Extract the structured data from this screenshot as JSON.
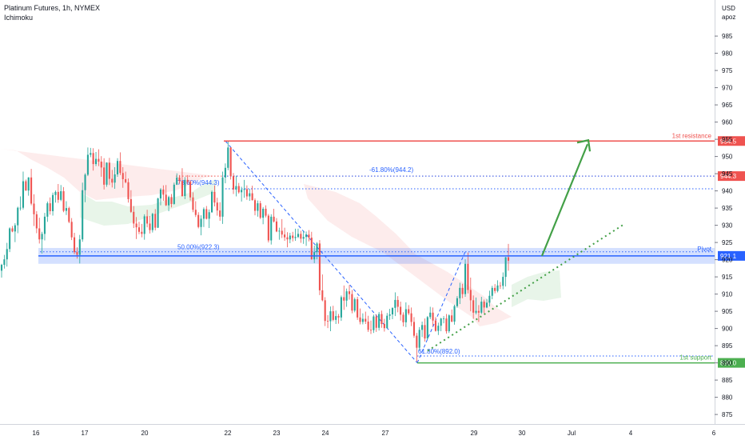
{
  "header": {
    "title": "Platinum Futures, 1h, NYMEX",
    "indicator": "Ichimoku"
  },
  "colors": {
    "up": "#26a69a",
    "down": "#ef5350",
    "resistance": "#ef5350",
    "support": "#4caf50",
    "pivot": "#2962ff",
    "fib": "#2962ff",
    "cloud_bear": "#fce4e4",
    "cloud_bull": "#e6f4ea",
    "arrow": "#43a047"
  },
  "chart_data": {
    "type": "candlestick",
    "y_axis": {
      "unit_top": "USD",
      "unit_sub": "apoz",
      "min": 872,
      "max": 988,
      "ticks": [
        875,
        880,
        885,
        890,
        895,
        900,
        905,
        910,
        915,
        920,
        925,
        930,
        935,
        940,
        945,
        950,
        955,
        960,
        965,
        970,
        975,
        980,
        985
      ]
    },
    "x_ticks": [
      "16",
      "17",
      "20",
      "22",
      "23",
      "24",
      "27",
      "29",
      "30",
      "Jul",
      "4",
      "6"
    ],
    "levels": [
      {
        "name": "1st resistance",
        "value": 954.5,
        "badge": "954.5"
      },
      {
        "name": "Pivot",
        "value": 921.1,
        "badge": "921.1"
      },
      {
        "name": "1st support",
        "value": 890.0,
        "badge": "890.0"
      },
      {
        "name": "",
        "value": 944.3,
        "badge": "944.3"
      }
    ],
    "fib_labels": [
      "78.60%(944.3)",
      "50.00%(922.3)",
      "-61.80%(944.2)",
      "61.80%(892.0)"
    ],
    "candles": [
      [
        916.8,
        918.8,
        914.8,
        918.5
      ],
      [
        918.5,
        921.4,
        917.4,
        920.1
      ],
      [
        920.1,
        924.9,
        918.0,
        923.1
      ],
      [
        923.1,
        929.4,
        922.2,
        929.1
      ],
      [
        929.1,
        929.8,
        928.0,
        928.2
      ],
      [
        928.2,
        930.6,
        925.1,
        930.0
      ],
      [
        930.0,
        935.4,
        927.7,
        935.1
      ],
      [
        935.1,
        938.4,
        934.3,
        935.1
      ],
      [
        935.1,
        945.6,
        934.6,
        942.8
      ],
      [
        942.8,
        943.3,
        940.0,
        940.1
      ],
      [
        940.1,
        944.0,
        938.6,
        943.9
      ],
      [
        943.9,
        946.4,
        935.8,
        936.3
      ],
      [
        936.3,
        939.0,
        929.8,
        933.2
      ],
      [
        933.2,
        934.1,
        927.7,
        929.1
      ],
      [
        929.1,
        932.2,
        924.7,
        925.9
      ],
      [
        925.9,
        928.1,
        921.8,
        927.5
      ],
      [
        927.5,
        933.6,
        925.6,
        932.5
      ],
      [
        932.5,
        936.9,
        931.0,
        936.4
      ],
      [
        936.4,
        938.1,
        933.1,
        934.1
      ],
      [
        934.1,
        939.5,
        932.8,
        938.8
      ],
      [
        938.8,
        940.1,
        936.6,
        939.7
      ],
      [
        939.7,
        942.0,
        936.5,
        937.4
      ],
      [
        937.4,
        941.7,
        937.0,
        939.9
      ],
      [
        939.9,
        941.1,
        933.8,
        934.2
      ],
      [
        934.2,
        937.0,
        933.0,
        935.0
      ],
      [
        935.0,
        935.4,
        930.6,
        931.0
      ],
      [
        931.0,
        932.1,
        925.7,
        926.5
      ],
      [
        926.5,
        927.8,
        921.6,
        922.2
      ],
      [
        922.2,
        923.6,
        920.3,
        921.4
      ],
      [
        921.4,
        927.2,
        918.9,
        925.9
      ],
      [
        925.9,
        942.4,
        925.2,
        940.2
      ],
      [
        940.2,
        945.1,
        936.7,
        944.7
      ],
      [
        944.7,
        952.6,
        944.3,
        950.5
      ],
      [
        950.5,
        952.5,
        949.8,
        951.0
      ],
      [
        951.0,
        952.4,
        945.9,
        947.8
      ],
      [
        947.8,
        951.3,
        947.2,
        949.3
      ],
      [
        949.3,
        952.1,
        947.2,
        948.5
      ],
      [
        948.5,
        950.1,
        944.1,
        946.8
      ],
      [
        946.8,
        949.5,
        940.4,
        941.8
      ],
      [
        941.8,
        948.3,
        941.2,
        948.2
      ],
      [
        948.2,
        949.6,
        941.7,
        943.5
      ],
      [
        943.5,
        946.1,
        941.0,
        942.4
      ],
      [
        942.4,
        946.9,
        940.6,
        944.8
      ],
      [
        944.8,
        949.5,
        944.1,
        948.7
      ],
      [
        948.7,
        951.2,
        944.6,
        945.2
      ],
      [
        945.2,
        946.9,
        940.9,
        943.4
      ],
      [
        943.4,
        945.6,
        942.2,
        942.5
      ],
      [
        942.5,
        943.6,
        936.6,
        937.6
      ],
      [
        937.6,
        940.2,
        933.6,
        933.9
      ],
      [
        933.9,
        935.6,
        929.2,
        930.5
      ],
      [
        930.5,
        932.4,
        926.0,
        929.4
      ],
      [
        929.4,
        931.0,
        927.4,
        928.1
      ],
      [
        928.1,
        930.4,
        926.5,
        927.5
      ],
      [
        927.5,
        933.2,
        925.8,
        932.6
      ],
      [
        932.6,
        934.5,
        929.4,
        930.5
      ],
      [
        930.5,
        932.7,
        927.6,
        928.6
      ],
      [
        928.6,
        933.6,
        927.9,
        933.3
      ],
      [
        933.3,
        934.7,
        928.5,
        929.3
      ],
      [
        929.3,
        938.0,
        929.2,
        937.8
      ],
      [
        937.8,
        940.8,
        935.8,
        940.4
      ],
      [
        940.4,
        941.6,
        937.1,
        938.9
      ],
      [
        938.9,
        941.7,
        935.6,
        935.8
      ],
      [
        935.8,
        938.6,
        934.1,
        938.2
      ],
      [
        938.2,
        939.1,
        935.2,
        936.2
      ],
      [
        936.2,
        942.4,
        936.0,
        941.8
      ],
      [
        941.8,
        945.1,
        941.7,
        943.9
      ],
      [
        943.9,
        944.6,
        942.1,
        942.9
      ],
      [
        942.9,
        946.6,
        938.3,
        938.5
      ],
      [
        938.5,
        944.0,
        937.6,
        943.2
      ],
      [
        943.2,
        944.6,
        941.9,
        942.6
      ],
      [
        942.6,
        943.1,
        937.2,
        938.1
      ],
      [
        938.1,
        939.6,
        933.8,
        934.5
      ],
      [
        934.5,
        937.0,
        932.4,
        933.0
      ],
      [
        933.0,
        933.8,
        929.1,
        929.5
      ],
      [
        929.5,
        932.9,
        927.1,
        931.9
      ],
      [
        931.9,
        935.2,
        929.5,
        934.7
      ],
      [
        934.7,
        935.6,
        931.7,
        931.9
      ],
      [
        931.9,
        934.6,
        929.2,
        933.8
      ],
      [
        933.8,
        940.1,
        933.6,
        939.7
      ],
      [
        939.7,
        941.6,
        935.5,
        936.6
      ],
      [
        936.6,
        938.0,
        932.8,
        934.3
      ],
      [
        934.3,
        936.7,
        931.3,
        932.5
      ],
      [
        932.5,
        945.6,
        930.4,
        943.9
      ],
      [
        943.9,
        948.0,
        942.2,
        946.7
      ],
      [
        946.7,
        954.6,
        946.0,
        952.6
      ],
      [
        952.6,
        952.7,
        943.3,
        944.3
      ],
      [
        944.3,
        945.2,
        939.1,
        940.4
      ],
      [
        940.4,
        944.4,
        938.4,
        941.4
      ],
      [
        941.4,
        942.3,
        939.2,
        939.6
      ],
      [
        939.6,
        941.2,
        936.9,
        940.3
      ],
      [
        940.3,
        943.2,
        938.0,
        940.5
      ],
      [
        940.5,
        941.6,
        937.4,
        938.4
      ],
      [
        938.4,
        940.6,
        937.1,
        939.3
      ],
      [
        939.3,
        941.5,
        937.2,
        937.3
      ],
      [
        937.3,
        937.8,
        932.9,
        934.2
      ],
      [
        934.2,
        937.2,
        932.5,
        936.4
      ],
      [
        936.4,
        937.1,
        931.8,
        932.2
      ],
      [
        932.2,
        935.3,
        930.3,
        934.8
      ],
      [
        934.8,
        935.8,
        932.3,
        932.8
      ],
      [
        932.8,
        933.3,
        925.0,
        925.6
      ],
      [
        925.6,
        933.2,
        924.4,
        932.5
      ],
      [
        932.5,
        934.8,
        930.8,
        931.1
      ],
      [
        931.1,
        932.1,
        928.0,
        928.2
      ],
      [
        928.2,
        929.3,
        925.8,
        928.4
      ],
      [
        928.4,
        931.8,
        926.3,
        927.3
      ],
      [
        927.3,
        929.3,
        925.5,
        926.5
      ],
      [
        926.5,
        928.0,
        923.6,
        925.9
      ],
      [
        925.9,
        927.8,
        924.8,
        927.0
      ],
      [
        927.0,
        928.1,
        925.3,
        926.3
      ],
      [
        926.3,
        929.0,
        925.5,
        926.6
      ],
      [
        926.6,
        929.0,
        926.3,
        927.5
      ],
      [
        927.5,
        928.4,
        924.9,
        926.1
      ],
      [
        926.1,
        928.4,
        924.6,
        926.6
      ],
      [
        926.6,
        928.2,
        924.0,
        927.3
      ],
      [
        927.3,
        928.6,
        925.3,
        926.4
      ],
      [
        926.4,
        928.1,
        920.0,
        920.1
      ],
      [
        920.1,
        924.1,
        919.0,
        922.2
      ],
      [
        922.2,
        925.1,
        920.1,
        924.7
      ],
      [
        924.7,
        925.7,
        909.7,
        911.1
      ],
      [
        911.1,
        915.7,
        907.9,
        908.2
      ],
      [
        908.2,
        909.1,
        900.7,
        902.2
      ],
      [
        902.2,
        903.9,
        900.1,
        902.1
      ],
      [
        902.1,
        906.4,
        899.2,
        905.0
      ],
      [
        905.0,
        906.6,
        902.1,
        902.5
      ],
      [
        902.5,
        905.2,
        901.3,
        903.6
      ],
      [
        903.6,
        904.2,
        901.4,
        903.2
      ],
      [
        903.2,
        909.6,
        902.2,
        909.1
      ],
      [
        909.1,
        912.5,
        905.4,
        908.1
      ],
      [
        908.1,
        911.6,
        906.3,
        910.8
      ],
      [
        910.8,
        912.6,
        908.4,
        910.0
      ],
      [
        910.0,
        911.2,
        904.4,
        905.2
      ],
      [
        905.2,
        909.0,
        904.7,
        908.5
      ],
      [
        908.5,
        909.2,
        902.5,
        903.2
      ],
      [
        903.2,
        905.8,
        901.2,
        901.9
      ],
      [
        901.9,
        904.4,
        901.2,
        902.8
      ],
      [
        902.8,
        904.9,
        901.3,
        902.0
      ],
      [
        902.0,
        903.7,
        899.0,
        899.6
      ],
      [
        899.6,
        902.3,
        898.4,
        899.5
      ],
      [
        899.5,
        904.0,
        898.7,
        903.5
      ],
      [
        903.5,
        904.1,
        899.0,
        900.2
      ],
      [
        900.2,
        904.8,
        899.4,
        904.2
      ],
      [
        904.2,
        905.2,
        900.2,
        901.3
      ],
      [
        901.3,
        902.8,
        899.1,
        900.1
      ],
      [
        900.1,
        904.5,
        900.0,
        903.7
      ],
      [
        903.7,
        905.7,
        902.5,
        904.1
      ],
      [
        904.1,
        906.1,
        902.7,
        906.0
      ],
      [
        906.0,
        910.5,
        903.6,
        908.3
      ],
      [
        908.3,
        909.4,
        904.7,
        906.3
      ],
      [
        906.3,
        907.8,
        902.3,
        904.0
      ],
      [
        904.0,
        904.7,
        900.6,
        901.8
      ],
      [
        901.8,
        907.6,
        900.4,
        905.6
      ],
      [
        905.6,
        906.8,
        903.9,
        904.4
      ],
      [
        904.4,
        906.1,
        900.7,
        901.9
      ],
      [
        901.9,
        903.3,
        897.3,
        897.9
      ],
      [
        897.9,
        898.7,
        890.4,
        894.4
      ],
      [
        894.4,
        900.4,
        893.6,
        899.6
      ],
      [
        899.6,
        902.0,
        897.5,
        901.0
      ],
      [
        901.0,
        902.9,
        896.2,
        897.1
      ],
      [
        897.1,
        903.6,
        896.8,
        903.3
      ],
      [
        903.3,
        906.3,
        902.7,
        904.6
      ],
      [
        904.6,
        906.1,
        900.7,
        902.3
      ],
      [
        902.3,
        903.3,
        899.1,
        899.3
      ],
      [
        899.3,
        901.7,
        898.1,
        900.8
      ],
      [
        900.8,
        903.1,
        899.2,
        902.9
      ],
      [
        902.9,
        903.6,
        901.5,
        902.9
      ],
      [
        902.9,
        904.2,
        898.5,
        899.2
      ],
      [
        899.2,
        904.1,
        898.7,
        903.8
      ],
      [
        903.8,
        905.5,
        901.8,
        902.0
      ],
      [
        902.0,
        906.9,
        901.1,
        906.5
      ],
      [
        906.5,
        909.4,
        906.0,
        908.8
      ],
      [
        908.8,
        913.3,
        907.1,
        911.8
      ],
      [
        911.8,
        913.0,
        908.8,
        910.0
      ],
      [
        910.0,
        920.1,
        909.2,
        918.8
      ],
      [
        918.8,
        922.1,
        910.2,
        911.2
      ],
      [
        911.2,
        914.8,
        905.0,
        908.2
      ],
      [
        908.2,
        909.6,
        902.8,
        904.6
      ],
      [
        904.6,
        909.0,
        904.1,
        905.1
      ],
      [
        905.1,
        906.8,
        901.9,
        904.6
      ],
      [
        904.6,
        909.2,
        904.2,
        907.8
      ],
      [
        907.8,
        908.4,
        904.5,
        906.1
      ],
      [
        906.1,
        908.6,
        905.9,
        907.5
      ],
      [
        907.5,
        911.0,
        906.4,
        909.5
      ],
      [
        909.5,
        912.4,
        908.5,
        911.8
      ],
      [
        911.8,
        912.9,
        910.2,
        910.9
      ],
      [
        910.9,
        914.0,
        910.5,
        912.5
      ],
      [
        912.5,
        913.5,
        911.5,
        912.4
      ],
      [
        912.4,
        916.3,
        911.4,
        915.0
      ],
      [
        915.0,
        920.8,
        912.2,
        920.7
      ],
      [
        920.7,
        924.6,
        916.8,
        919.7
      ]
    ]
  }
}
